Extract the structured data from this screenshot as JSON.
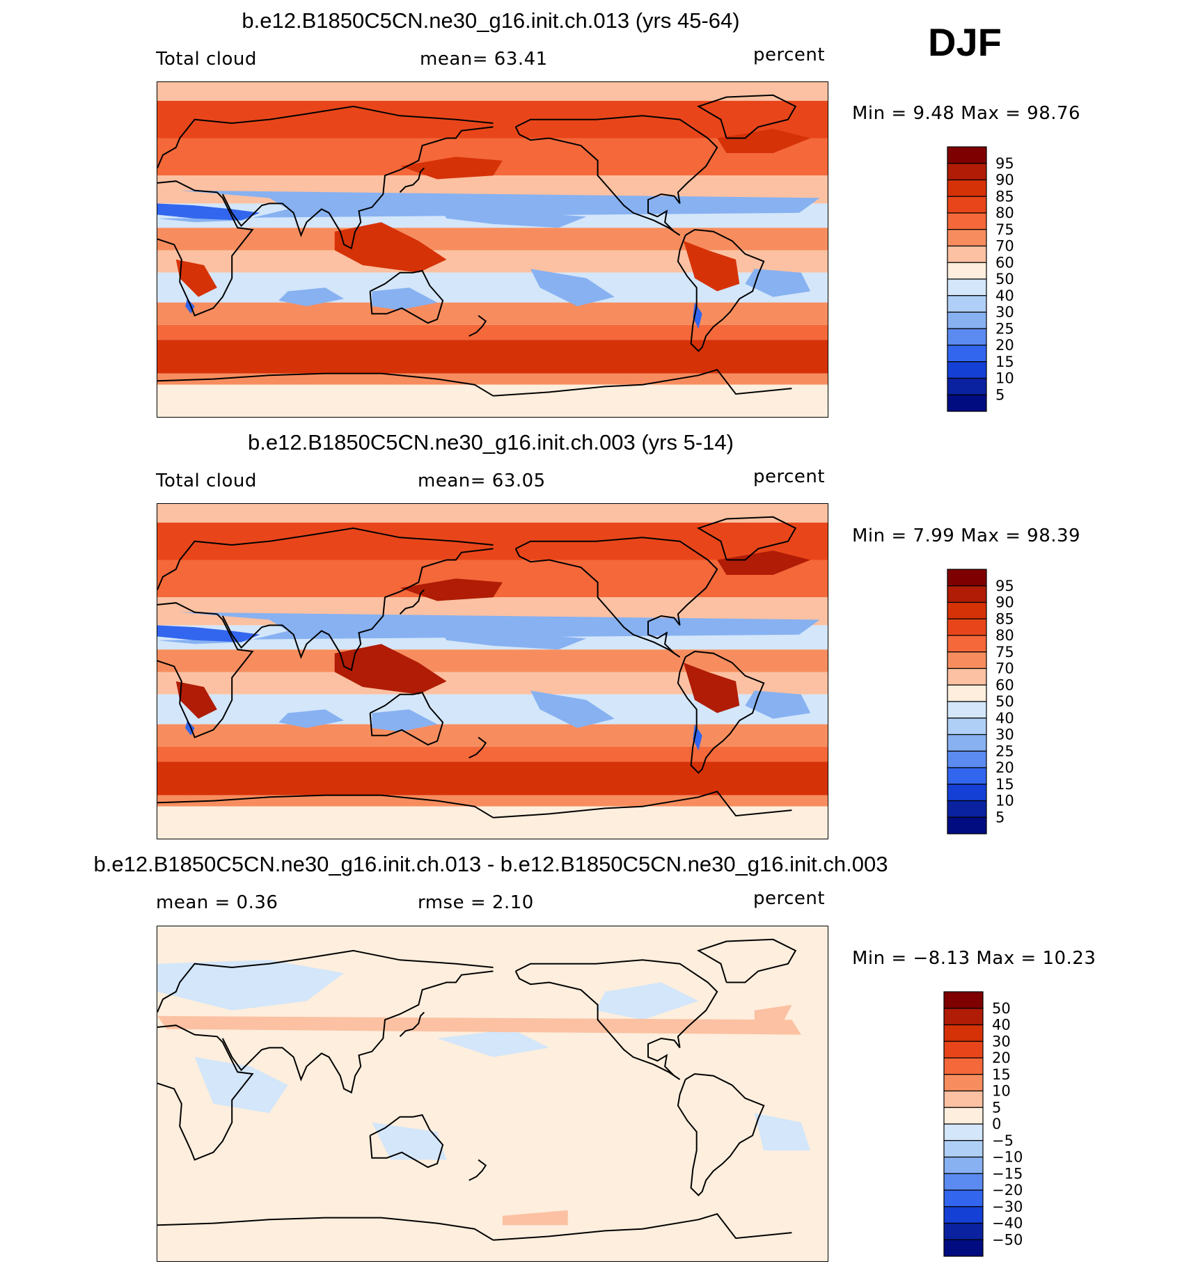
{
  "header": {
    "season": "DJF"
  },
  "panels": [
    {
      "title": "b.e12.B1850C5CN.ne30_g16.init.ch.013 (yrs 45-64)",
      "left_label": "Total cloud",
      "center_label": "mean=   63.41",
      "units": "percent",
      "minmax": "Min =    9.48  Max =   98.76",
      "variant": "abs"
    },
    {
      "title": "b.e12.B1850C5CN.ne30_g16.init.ch.003 (yrs 5-14)",
      "left_label": "Total cloud",
      "center_label": "mean=   63.05",
      "units": "percent",
      "minmax": "Min =    7.99  Max =   98.39",
      "variant": "abs2"
    },
    {
      "title": "b.e12.B1850C5CN.ne30_g16.init.ch.013 - b.e12.B1850C5CN.ne30_g16.init.ch.003",
      "left_label": "mean =     0.36",
      "center_label": "rmse =     2.10",
      "units": "percent",
      "minmax": "Min =   −8.13  Max =   10.23",
      "variant": "diff"
    }
  ],
  "colorbars": {
    "abs": {
      "labels": [
        "95",
        "90",
        "85",
        "80",
        "75",
        "70",
        "60",
        "50",
        "40",
        "30",
        "25",
        "20",
        "15",
        "10",
        "5"
      ],
      "colors": [
        "#7f0000",
        "#b01c05",
        "#d63208",
        "#e8461a",
        "#f4683a",
        "#f78d5e",
        "#fbc1a2",
        "#fdeedd",
        "#d3e6fa",
        "#b0cff6",
        "#87b1f1",
        "#5b8bf0",
        "#3366ee",
        "#1540d6",
        "#0a22a0",
        "#000c80"
      ]
    },
    "diff": {
      "labels": [
        "50",
        "40",
        "30",
        "20",
        "15",
        "10",
        "5",
        "0",
        "−5",
        "−10",
        "−15",
        "−20",
        "−30",
        "−40",
        "−50"
      ],
      "colors": [
        "#7f0000",
        "#b01c05",
        "#d63208",
        "#e8461a",
        "#f4683a",
        "#f78d5e",
        "#fbc1a2",
        "#fdeedd",
        "#d3e6fa",
        "#b0cff6",
        "#87b1f1",
        "#5b8bf0",
        "#3366ee",
        "#1540d6",
        "#0a22a0",
        "#000c80"
      ]
    }
  }
}
